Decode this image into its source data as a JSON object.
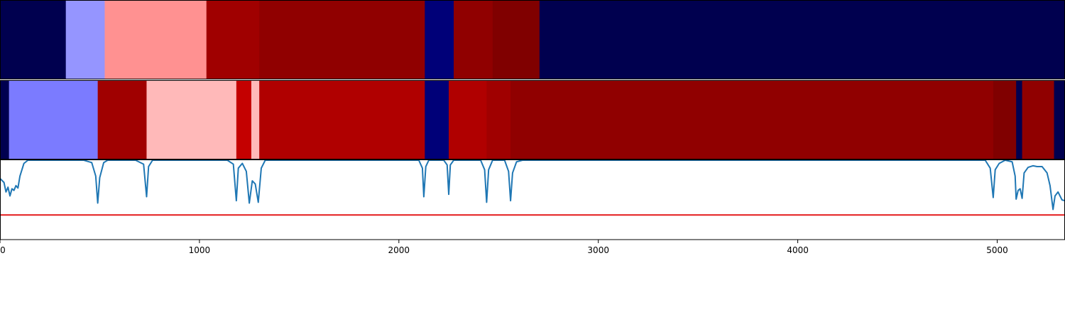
{
  "chart_data": [
    {
      "type": "heatmap",
      "xlim": [
        0,
        5340
      ],
      "segments": [
        {
          "start": 0,
          "end": 330,
          "color": "#00004f"
        },
        {
          "start": 330,
          "end": 525,
          "color": "#9595ff"
        },
        {
          "start": 525,
          "end": 1035,
          "color": "#ff9191"
        },
        {
          "start": 1035,
          "end": 1300,
          "color": "#a00000"
        },
        {
          "start": 1300,
          "end": 2130,
          "color": "#900000"
        },
        {
          "start": 2130,
          "end": 2275,
          "color": "#000078"
        },
        {
          "start": 2275,
          "end": 2470,
          "color": "#900000"
        },
        {
          "start": 2470,
          "end": 2705,
          "color": "#800000"
        },
        {
          "start": 2705,
          "end": 5340,
          "color": "#00004f"
        }
      ]
    },
    {
      "type": "heatmap",
      "xlim": [
        0,
        5340
      ],
      "segments": [
        {
          "start": 0,
          "end": 45,
          "color": "#00004f"
        },
        {
          "start": 45,
          "end": 490,
          "color": "#7b7bff"
        },
        {
          "start": 490,
          "end": 735,
          "color": "#a00000"
        },
        {
          "start": 735,
          "end": 1185,
          "color": "#ffb9b9"
        },
        {
          "start": 1185,
          "end": 1260,
          "color": "#c40000"
        },
        {
          "start": 1260,
          "end": 1300,
          "color": "#ffb9b9"
        },
        {
          "start": 1300,
          "end": 2130,
          "color": "#b00000"
        },
        {
          "start": 2130,
          "end": 2250,
          "color": "#000078"
        },
        {
          "start": 2250,
          "end": 2440,
          "color": "#b00000"
        },
        {
          "start": 2440,
          "end": 2560,
          "color": "#a00000"
        },
        {
          "start": 2560,
          "end": 4980,
          "color": "#900000"
        },
        {
          "start": 4980,
          "end": 5095,
          "color": "#800000"
        },
        {
          "start": 5095,
          "end": 5125,
          "color": "#00004f"
        },
        {
          "start": 5125,
          "end": 5285,
          "color": "#900000"
        },
        {
          "start": 5285,
          "end": 5340,
          "color": "#00004f"
        }
      ]
    },
    {
      "type": "line",
      "xlim": [
        0,
        5340
      ],
      "ylim": [
        0,
        1
      ],
      "xticks": [
        0,
        1000,
        2000,
        3000,
        4000,
        5000
      ],
      "series": [
        {
          "color": "#1f77b4",
          "points": [
            [
              0,
              0.77
            ],
            [
              20,
              0.72
            ],
            [
              30,
              0.6
            ],
            [
              40,
              0.66
            ],
            [
              50,
              0.55
            ],
            [
              60,
              0.64
            ],
            [
              70,
              0.62
            ],
            [
              80,
              0.68
            ],
            [
              90,
              0.65
            ],
            [
              100,
              0.8
            ],
            [
              120,
              0.96
            ],
            [
              140,
              1.0
            ],
            [
              420,
              1.0
            ],
            [
              460,
              0.97
            ],
            [
              480,
              0.8
            ],
            [
              490,
              0.46
            ],
            [
              500,
              0.78
            ],
            [
              520,
              0.97
            ],
            [
              540,
              1.0
            ],
            [
              680,
              1.0
            ],
            [
              720,
              0.95
            ],
            [
              735,
              0.54
            ],
            [
              745,
              0.92
            ],
            [
              765,
              1.0
            ],
            [
              1140,
              1.0
            ],
            [
              1170,
              0.95
            ],
            [
              1185,
              0.49
            ],
            [
              1195,
              0.9
            ],
            [
              1215,
              0.96
            ],
            [
              1235,
              0.86
            ],
            [
              1250,
              0.46
            ],
            [
              1265,
              0.74
            ],
            [
              1280,
              0.7
            ],
            [
              1295,
              0.47
            ],
            [
              1310,
              0.9
            ],
            [
              1330,
              1.0
            ],
            [
              2100,
              1.0
            ],
            [
              2118,
              0.9
            ],
            [
              2125,
              0.54
            ],
            [
              2135,
              0.92
            ],
            [
              2150,
              1.0
            ],
            [
              2225,
              1.0
            ],
            [
              2242,
              0.94
            ],
            [
              2250,
              0.57
            ],
            [
              2258,
              0.94
            ],
            [
              2275,
              1.0
            ],
            [
              2410,
              1.0
            ],
            [
              2430,
              0.88
            ],
            [
              2440,
              0.47
            ],
            [
              2450,
              0.88
            ],
            [
              2470,
              1.0
            ],
            [
              2530,
              1.0
            ],
            [
              2550,
              0.86
            ],
            [
              2560,
              0.49
            ],
            [
              2570,
              0.84
            ],
            [
              2590,
              0.98
            ],
            [
              2620,
              1.0
            ],
            [
              4940,
              1.0
            ],
            [
              4965,
              0.9
            ],
            [
              4980,
              0.53
            ],
            [
              4990,
              0.88
            ],
            [
              5010,
              0.96
            ],
            [
              5040,
              1.0
            ],
            [
              5075,
              0.98
            ],
            [
              5090,
              0.8
            ],
            [
              5095,
              0.51
            ],
            [
              5105,
              0.62
            ],
            [
              5115,
              0.64
            ],
            [
              5125,
              0.52
            ],
            [
              5135,
              0.84
            ],
            [
              5155,
              0.91
            ],
            [
              5180,
              0.93
            ],
            [
              5200,
              0.92
            ],
            [
              5225,
              0.92
            ],
            [
              5250,
              0.84
            ],
            [
              5265,
              0.68
            ],
            [
              5280,
              0.38
            ],
            [
              5290,
              0.55
            ],
            [
              5305,
              0.6
            ],
            [
              5325,
              0.5
            ],
            [
              5340,
              0.49
            ]
          ]
        }
      ],
      "threshold": {
        "value": 0.31,
        "color": "#e41a1c"
      }
    }
  ]
}
